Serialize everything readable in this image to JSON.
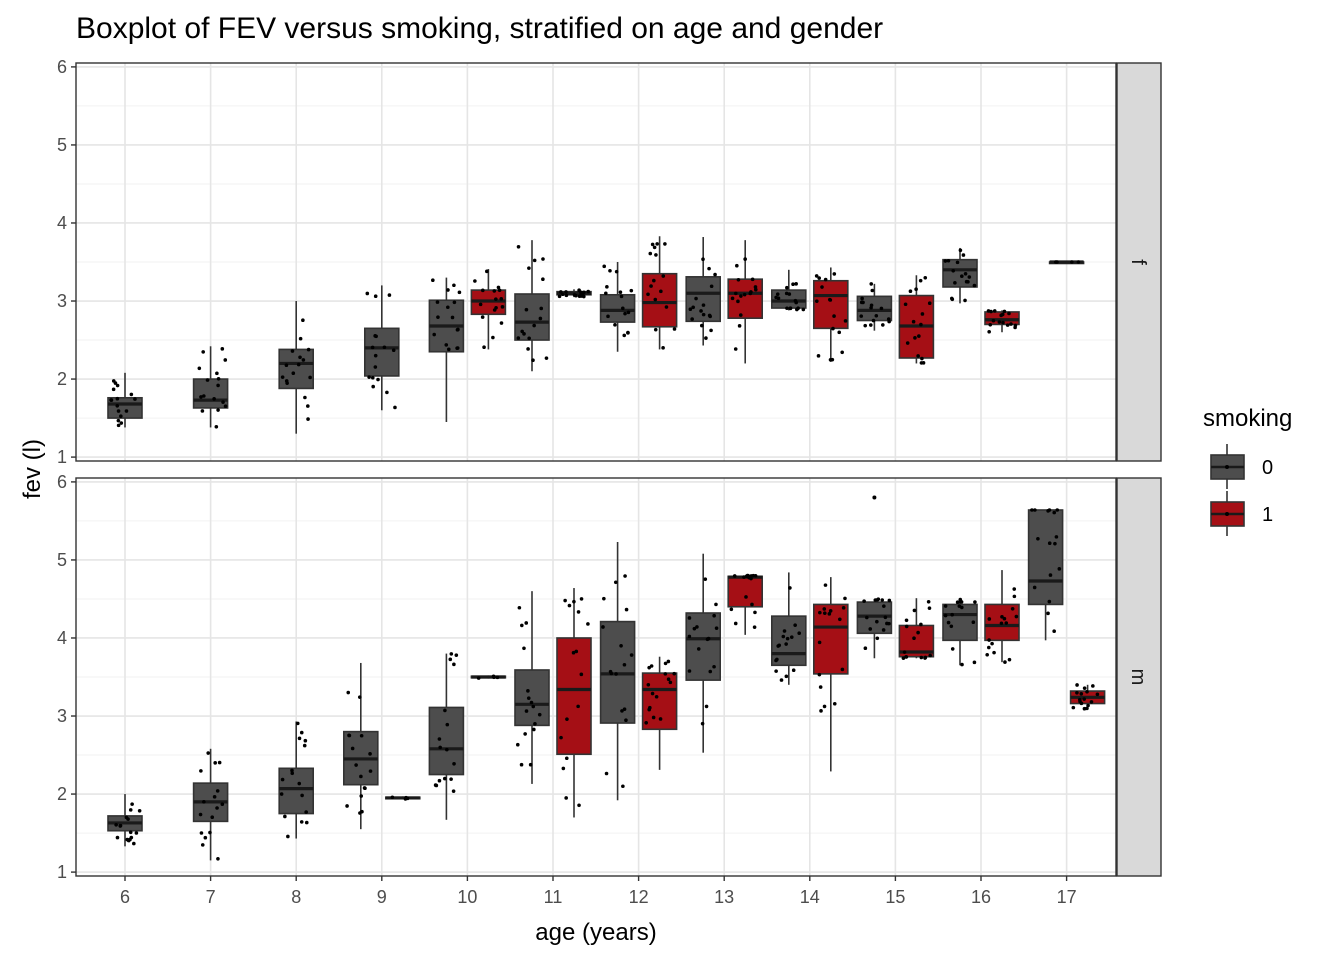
{
  "chart_data": {
    "type": "boxplot",
    "title": "Boxplot of FEV versus smoking, stratified on age and gender",
    "xlabel": "age (years)",
    "ylabel": "fev (l)",
    "x_categories": [
      "6",
      "7",
      "8",
      "9",
      "10",
      "11",
      "12",
      "13",
      "14",
      "15",
      "16",
      "17"
    ],
    "y_ticks": [
      "1",
      "2",
      "3",
      "4",
      "5",
      "6"
    ],
    "ylim": [
      0.95,
      6.05
    ],
    "legend": {
      "title": "smoking",
      "position": "right",
      "entries": [
        {
          "label": "0",
          "color": "#4d4d4d"
        },
        {
          "label": "1",
          "color": "#a50f15"
        }
      ]
    },
    "facets": [
      {
        "label": "f",
        "boxes": [
          {
            "age": 6,
            "smoking": 0,
            "whislo": 1.38,
            "q1": 1.5,
            "med": 1.68,
            "q3": 1.76,
            "whishi": 2.08
          },
          {
            "age": 7,
            "smoking": 0,
            "whislo": 1.38,
            "q1": 1.63,
            "med": 1.73,
            "q3": 2.0,
            "whishi": 2.42
          },
          {
            "age": 8,
            "smoking": 0,
            "whislo": 1.3,
            "q1": 1.88,
            "med": 2.2,
            "q3": 2.38,
            "whishi": 3.0
          },
          {
            "age": 9,
            "smoking": 0,
            "whislo": 1.6,
            "q1": 2.04,
            "med": 2.4,
            "q3": 2.65,
            "whishi": 3.2
          },
          {
            "age": 10,
            "smoking": 0,
            "whislo": 1.45,
            "q1": 2.35,
            "med": 2.68,
            "q3": 3.01,
            "whishi": 3.3
          },
          {
            "age": 10,
            "smoking": 1,
            "whislo": 2.38,
            "q1": 2.83,
            "med": 3.0,
            "q3": 3.14,
            "whishi": 3.41
          },
          {
            "age": 11,
            "smoking": 0,
            "whislo": 2.1,
            "q1": 2.5,
            "med": 2.73,
            "q3": 3.09,
            "whishi": 3.78
          },
          {
            "age": 11,
            "smoking": 1,
            "whislo": 3.05,
            "q1": 3.08,
            "med": 3.1,
            "q3": 3.12,
            "whishi": 3.15
          },
          {
            "age": 12,
            "smoking": 0,
            "whislo": 2.35,
            "q1": 2.73,
            "med": 2.88,
            "q3": 3.08,
            "whishi": 3.5
          },
          {
            "age": 12,
            "smoking": 1,
            "whislo": 2.38,
            "q1": 2.67,
            "med": 2.98,
            "q3": 3.35,
            "whishi": 3.83
          },
          {
            "age": 13,
            "smoking": 0,
            "whislo": 2.43,
            "q1": 2.74,
            "med": 3.1,
            "q3": 3.31,
            "whishi": 3.82
          },
          {
            "age": 13,
            "smoking": 1,
            "whislo": 2.2,
            "q1": 2.78,
            "med": 3.1,
            "q3": 3.28,
            "whishi": 3.78
          },
          {
            "age": 14,
            "smoking": 0,
            "whislo": 2.88,
            "q1": 2.91,
            "med": 3.0,
            "q3": 3.14,
            "whishi": 3.4
          },
          {
            "age": 14,
            "smoking": 1,
            "whislo": 2.22,
            "q1": 2.65,
            "med": 3.07,
            "q3": 3.26,
            "whishi": 3.43
          },
          {
            "age": 15,
            "smoking": 0,
            "whislo": 2.62,
            "q1": 2.75,
            "med": 2.88,
            "q3": 3.06,
            "whishi": 3.22
          },
          {
            "age": 15,
            "smoking": 1,
            "whislo": 2.2,
            "q1": 2.27,
            "med": 2.68,
            "q3": 3.07,
            "whishi": 3.33
          },
          {
            "age": 16,
            "smoking": 0,
            "whislo": 2.97,
            "q1": 3.18,
            "med": 3.4,
            "q3": 3.53,
            "whishi": 3.68
          },
          {
            "age": 16,
            "smoking": 1,
            "whislo": 2.6,
            "q1": 2.7,
            "med": 2.76,
            "q3": 2.86,
            "whishi": 2.88
          },
          {
            "age": 17,
            "smoking": 0,
            "whislo": 3.5,
            "q1": 3.5,
            "med": 3.5,
            "q3": 3.5,
            "whishi": 3.5
          }
        ]
      },
      {
        "label": "m",
        "boxes": [
          {
            "age": 6,
            "smoking": 0,
            "whislo": 1.33,
            "q1": 1.53,
            "med": 1.63,
            "q3": 1.72,
            "whishi": 2.0
          },
          {
            "age": 7,
            "smoking": 0,
            "whislo": 1.15,
            "q1": 1.65,
            "med": 1.9,
            "q3": 2.14,
            "whishi": 2.58
          },
          {
            "age": 8,
            "smoking": 0,
            "whislo": 1.43,
            "q1": 1.75,
            "med": 2.07,
            "q3": 2.33,
            "whishi": 2.93
          },
          {
            "age": 9,
            "smoking": 0,
            "whislo": 1.55,
            "q1": 2.12,
            "med": 2.45,
            "q3": 2.8,
            "whishi": 3.68
          },
          {
            "age": 9,
            "smoking": 1,
            "whislo": 1.93,
            "q1": 1.94,
            "med": 1.95,
            "q3": 1.96,
            "whishi": 1.97
          },
          {
            "age": 10,
            "smoking": 0,
            "whislo": 1.67,
            "q1": 2.25,
            "med": 2.58,
            "q3": 3.11,
            "whishi": 3.8
          },
          {
            "age": 10,
            "smoking": 1,
            "whislo": 3.48,
            "q1": 3.49,
            "med": 3.5,
            "q3": 3.51,
            "whishi": 3.52
          },
          {
            "age": 11,
            "smoking": 0,
            "whislo": 2.13,
            "q1": 2.88,
            "med": 3.15,
            "q3": 3.59,
            "whishi": 4.6
          },
          {
            "age": 11,
            "smoking": 1,
            "whislo": 1.7,
            "q1": 2.51,
            "med": 3.34,
            "q3": 4.0,
            "whishi": 4.64
          },
          {
            "age": 12,
            "smoking": 0,
            "whislo": 1.92,
            "q1": 2.91,
            "med": 3.54,
            "q3": 4.21,
            "whishi": 5.23
          },
          {
            "age": 12,
            "smoking": 1,
            "whislo": 2.31,
            "q1": 2.83,
            "med": 3.34,
            "q3": 3.55,
            "whishi": 3.76
          },
          {
            "age": 13,
            "smoking": 0,
            "whislo": 2.53,
            "q1": 3.46,
            "med": 3.99,
            "q3": 4.32,
            "whishi": 5.08
          },
          {
            "age": 13,
            "smoking": 1,
            "whislo": 4.04,
            "q1": 4.4,
            "med": 4.78,
            "q3": 4.79,
            "whishi": 4.8
          },
          {
            "age": 14,
            "smoking": 0,
            "whislo": 3.4,
            "q1": 3.65,
            "med": 3.8,
            "q3": 4.28,
            "whishi": 4.84
          },
          {
            "age": 14,
            "smoking": 1,
            "whislo": 2.29,
            "q1": 3.54,
            "med": 4.14,
            "q3": 4.43,
            "whishi": 4.78
          },
          {
            "age": 15,
            "smoking": 0,
            "whislo": 3.74,
            "q1": 4.06,
            "med": 4.28,
            "q3": 4.46,
            "whishi": 4.5,
            "outliers": [
              5.8
            ]
          },
          {
            "age": 15,
            "smoking": 1,
            "whislo": 3.74,
            "q1": 3.76,
            "med": 3.82,
            "q3": 4.16,
            "whishi": 4.51
          },
          {
            "age": 16,
            "smoking": 0,
            "whislo": 3.65,
            "q1": 3.97,
            "med": 4.3,
            "q3": 4.43,
            "whishi": 4.5
          },
          {
            "age": 16,
            "smoking": 1,
            "whislo": 3.69,
            "q1": 3.97,
            "med": 4.16,
            "q3": 4.43,
            "whishi": 4.87
          },
          {
            "age": 17,
            "smoking": 0,
            "whislo": 3.97,
            "q1": 4.43,
            "med": 4.73,
            "q3": 5.64,
            "whishi": 5.64
          },
          {
            "age": 17,
            "smoking": 1,
            "whislo": 3.09,
            "q1": 3.16,
            "med": 3.24,
            "q3": 3.32,
            "whishi": 3.4
          }
        ]
      }
    ]
  }
}
